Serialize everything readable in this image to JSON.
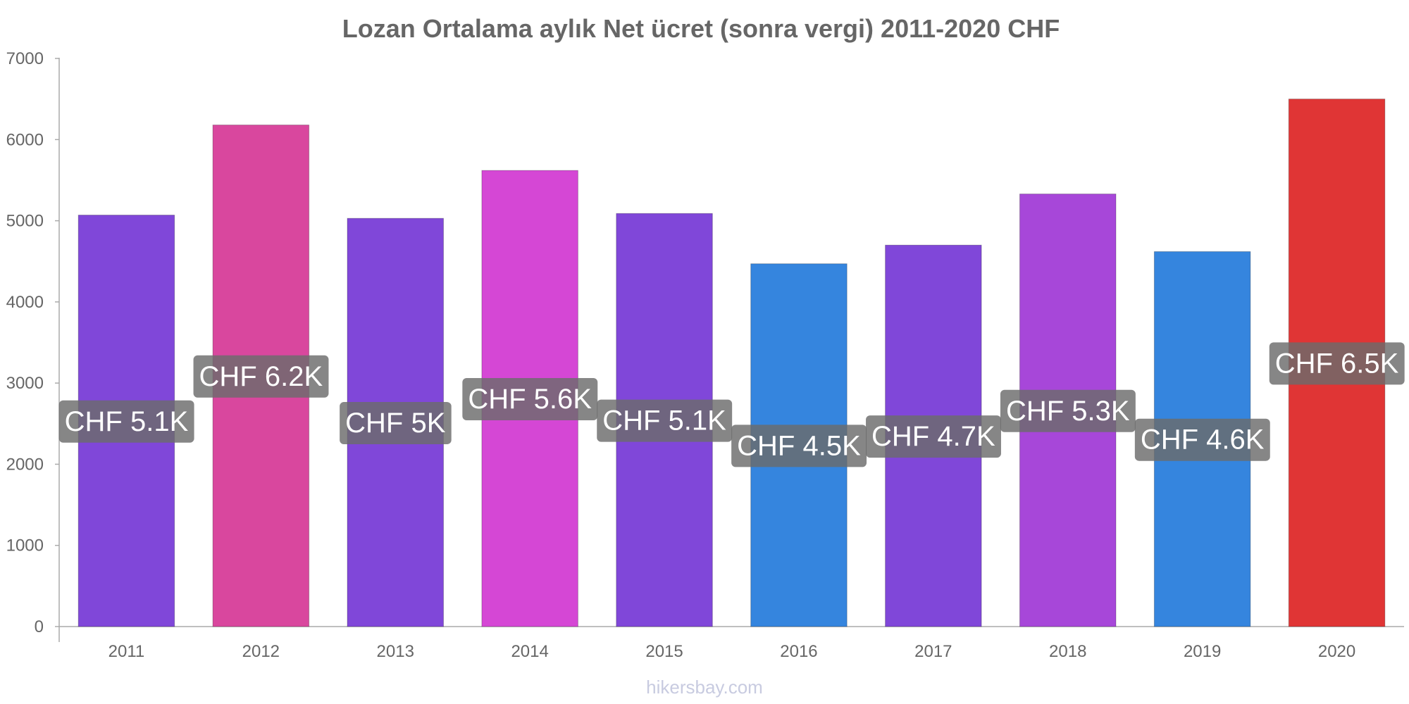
{
  "chart_data": {
    "type": "bar",
    "title": "Lozan Ortalama aylık Net ücret (sonra vergi) 2011-2020 CHF",
    "xlabel": "",
    "ylabel": "",
    "categories": [
      "2011",
      "2012",
      "2013",
      "2014",
      "2015",
      "2016",
      "2017",
      "2018",
      "2019",
      "2020"
    ],
    "values": [
      5070,
      6180,
      5030,
      5620,
      5090,
      4470,
      4700,
      5330,
      4620,
      6500
    ],
    "value_labels": [
      "CHF 5.1K",
      "CHF 6.2K",
      "CHF 5K",
      "CHF 5.6K",
      "CHF 5.1K",
      "CHF 4.5K",
      "CHF 4.7K",
      "CHF 5.3K",
      "CHF 4.6K",
      "CHF 6.5K"
    ],
    "bar_colors": [
      "#8047d9",
      "#d9479e",
      "#8047d9",
      "#d547d5",
      "#8047d9",
      "#3585de",
      "#8047d9",
      "#a747d9",
      "#3585de",
      "#e03535"
    ],
    "label_bg_color": "#6b6b6b",
    "ylim": [
      0,
      7000
    ],
    "yticks": [
      "0",
      "1000",
      "2000",
      "3000",
      "4000",
      "5000",
      "6000",
      "7000"
    ],
    "grid": false,
    "legend": "none"
  },
  "watermark": "hikersbay.com"
}
